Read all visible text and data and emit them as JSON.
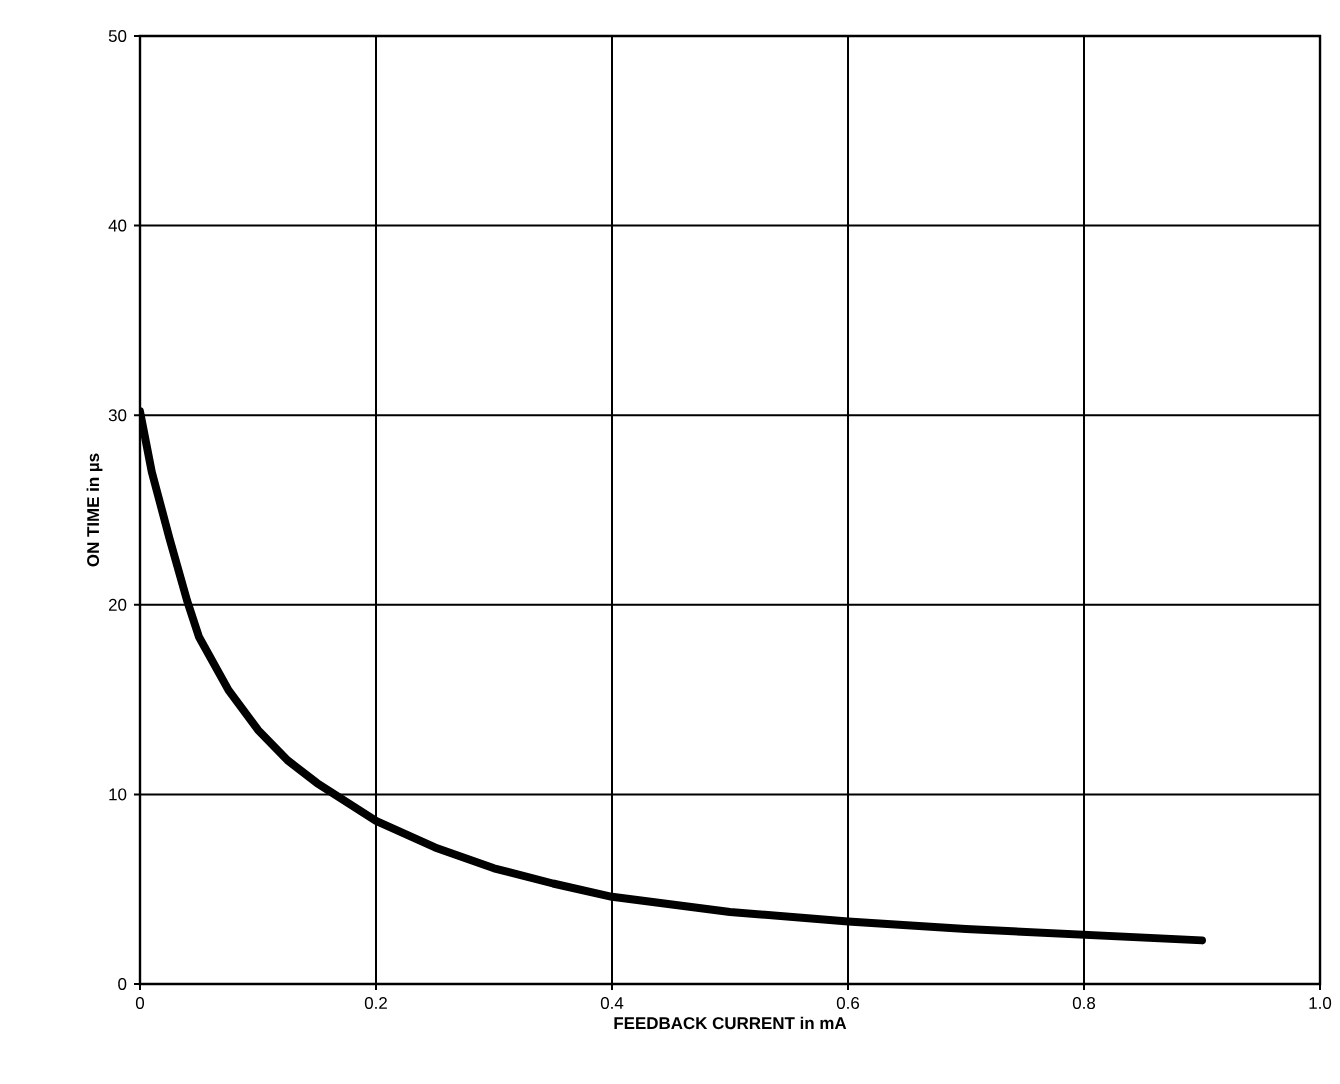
{
  "chart_data": {
    "type": "line",
    "xlabel": "FEEDBACK CURRENT in mA",
    "ylabel": "ON TIME in µs",
    "xlim": [
      0,
      1.0
    ],
    "ylim": [
      0,
      50
    ],
    "xticks": [
      0,
      0.2,
      0.4,
      0.6,
      0.8,
      {
        "value": 1,
        "label": "1.0"
      }
    ],
    "yticks": [
      0,
      10,
      20,
      30,
      40,
      50
    ],
    "grid": true,
    "marker": "none",
    "line_style": "solid",
    "series": [
      {
        "color": "#000000",
        "x": [
          0,
          0.01,
          0.025,
          0.04,
          0.05,
          0.075,
          0.1,
          0.125,
          0.15,
          0.2,
          0.25,
          0.3,
          0.35,
          0.4,
          0.5,
          0.6,
          0.7,
          0.8,
          0.9
        ],
        "values": [
          30.2,
          27,
          23.5,
          20.2,
          18.3,
          15.5,
          13.4,
          11.8,
          10.6,
          8.6,
          7.2,
          6.1,
          5.3,
          4.6,
          3.8,
          3.3,
          2.9,
          2.6,
          2.3
        ]
      }
    ]
  }
}
